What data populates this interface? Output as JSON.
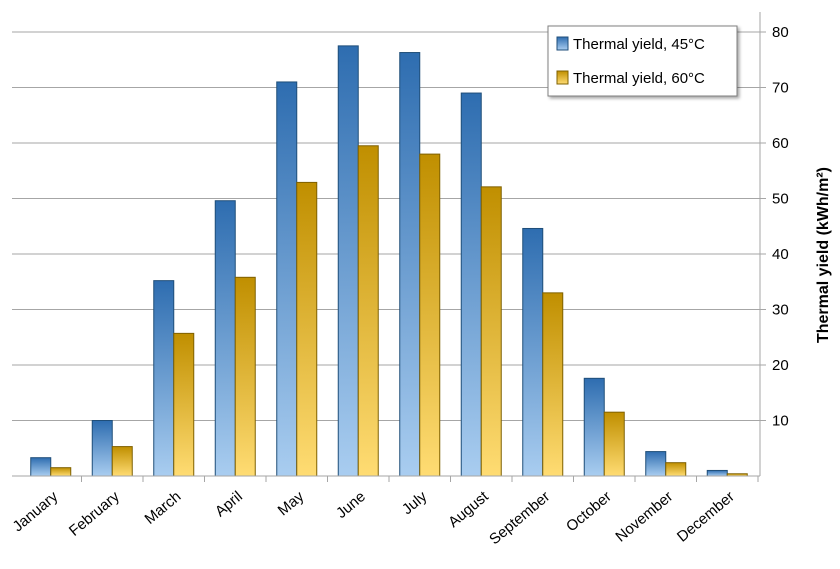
{
  "chart_data": {
    "type": "bar",
    "title": "",
    "xlabel": "",
    "ylabel": "Thermal yield   (kWh/m²)",
    "categories": [
      "January",
      "February",
      "March",
      "April",
      "May",
      "June",
      "July",
      "August",
      "September",
      "October",
      "November",
      "December"
    ],
    "series": [
      {
        "name": "Thermal yield, 45°C",
        "color_top": "#2e6db0",
        "color_bottom": "#a9cdf0",
        "values": [
          3.3,
          10.0,
          35.2,
          49.6,
          71.0,
          77.5,
          76.3,
          69.0,
          44.6,
          17.6,
          4.4,
          1.0
        ]
      },
      {
        "name": "Thermal yield, 60°C",
        "color_top": "#c08f00",
        "color_bottom": "#ffdc73",
        "values": [
          1.5,
          5.3,
          25.7,
          35.8,
          52.9,
          59.5,
          58.0,
          52.1,
          33.0,
          11.5,
          2.4,
          0.4
        ]
      }
    ],
    "yticks": [
      10,
      20,
      30,
      40,
      50,
      60,
      70,
      80
    ],
    "ylim": [
      0,
      80
    ],
    "y_axis_position": "right",
    "grid": true,
    "legend_position": "top-right"
  }
}
